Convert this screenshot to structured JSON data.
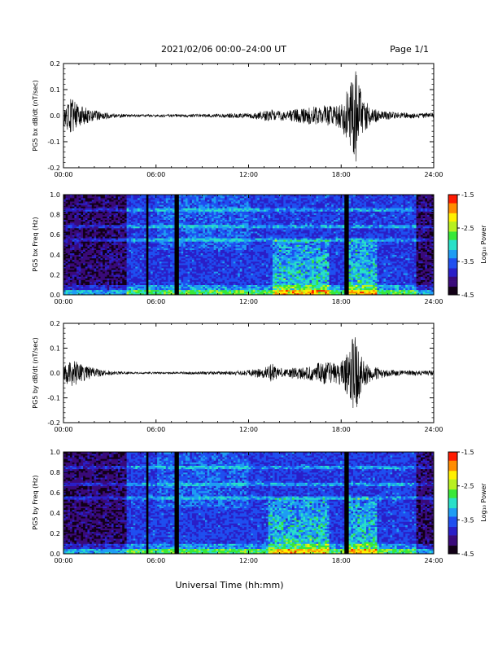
{
  "header": {
    "title": "2021/02/06  00:00–24:00 UT",
    "page": "Page 1/1"
  },
  "x_axis": {
    "ticks": [
      "00:00",
      "06:00",
      "12:00",
      "18:00",
      "24:00"
    ],
    "label": "Universal Time (hh:mm)"
  },
  "colorbar": {
    "label": "Log₁₀ Power",
    "ticks": [
      "-1.5",
      "-2.5",
      "-3.5",
      "-4.5"
    ],
    "range": [
      -4.5,
      -1.5
    ],
    "colors": [
      "#120016",
      "#3a0a7a",
      "#2a1fc8",
      "#1f4ff0",
      "#1e9df4",
      "#28e0c8",
      "#38e838",
      "#b8f020",
      "#fff000",
      "#ff8c00",
      "#ff1a00"
    ]
  },
  "chart_data": [
    {
      "type": "line",
      "title": "",
      "ylabel": "PG5 bx dB/dt (nT/sec)",
      "xlabel": "",
      "xlim_hours": [
        0,
        24
      ],
      "ylim": [
        -0.2,
        0.2
      ],
      "yticks": [
        "-0.2",
        "-0.1",
        "0.0",
        "0.1",
        "0.2"
      ],
      "series": [
        {
          "x_hours": [
            0,
            0.5,
            1,
            1.5,
            2,
            2.5,
            3,
            3.5,
            4,
            4.5,
            5,
            6,
            7,
            8,
            9,
            10,
            11,
            12,
            12.5,
            13,
            13.5,
            14,
            14.5,
            15,
            15.5,
            16,
            16.5,
            17,
            17.5,
            18,
            18.3,
            18.6,
            18.9,
            19.1,
            19.4,
            20,
            21,
            22,
            23,
            24
          ],
          "envelope": [
            0.04,
            0.07,
            0.04,
            0.03,
            0.02,
            0.015,
            0.01,
            0.008,
            0.006,
            0.005,
            0.005,
            0.005,
            0.005,
            0.006,
            0.006,
            0.007,
            0.008,
            0.01,
            0.015,
            0.02,
            0.025,
            0.018,
            0.02,
            0.025,
            0.03,
            0.035,
            0.035,
            0.04,
            0.04,
            0.05,
            0.09,
            0.12,
            0.2,
            0.14,
            0.07,
            0.03,
            0.015,
            0.012,
            0.01,
            0.01
          ]
        }
      ]
    },
    {
      "type": "heatmap",
      "title": "",
      "ylabel": "PG5 bx Freq (Hz)",
      "xlabel": "",
      "xlim_hours": [
        0,
        24
      ],
      "ylim": [
        0,
        1.0
      ],
      "yticks": [
        "0.0",
        "0.2",
        "0.4",
        "0.6",
        "0.8",
        "1.0"
      ],
      "data_gap_hours": [
        [
          5.3,
          5.5
        ],
        [
          7.25,
          7.5
        ],
        [
          18.2,
          18.45
        ]
      ],
      "quiet_interval_hours": [
        [
          0,
          4.1
        ],
        [
          22.9,
          24
        ]
      ],
      "enhanced_interval_hours": [
        [
          13.5,
          17.2
        ],
        [
          18.5,
          20.3
        ]
      ]
    },
    {
      "type": "line",
      "title": "",
      "ylabel": "PG5 by dB/dt (nT/sec)",
      "xlabel": "",
      "xlim_hours": [
        0,
        24
      ],
      "ylim": [
        -0.2,
        0.2
      ],
      "yticks": [
        "-0.2",
        "-0.1",
        "0.0",
        "0.1",
        "0.2"
      ],
      "series": [
        {
          "x_hours": [
            0,
            0.5,
            1,
            1.5,
            2,
            2.5,
            3,
            3.5,
            4,
            4.5,
            5,
            6,
            7,
            8,
            9,
            10,
            11,
            12,
            12.5,
            13,
            13.5,
            14,
            14.5,
            15,
            15.5,
            16,
            16.5,
            17,
            17.5,
            18,
            18.3,
            18.6,
            18.9,
            19.1,
            19.4,
            20,
            21,
            22,
            23,
            24
          ],
          "envelope": [
            0.03,
            0.06,
            0.04,
            0.03,
            0.02,
            0.012,
            0.008,
            0.006,
            0.005,
            0.004,
            0.004,
            0.004,
            0.004,
            0.005,
            0.006,
            0.006,
            0.008,
            0.012,
            0.018,
            0.02,
            0.04,
            0.02,
            0.02,
            0.025,
            0.025,
            0.035,
            0.04,
            0.05,
            0.04,
            0.05,
            0.09,
            0.12,
            0.16,
            0.12,
            0.06,
            0.03,
            0.015,
            0.01,
            0.01,
            0.01
          ]
        }
      ]
    },
    {
      "type": "heatmap",
      "title": "",
      "ylabel": "PG5 by Freq (Hz)",
      "xlabel": "",
      "xlim_hours": [
        0,
        24
      ],
      "ylim": [
        0,
        1.0
      ],
      "yticks": [
        "0.0",
        "0.2",
        "0.4",
        "0.6",
        "0.8",
        "1.0"
      ],
      "data_gap_hours": [
        [
          5.3,
          5.5
        ],
        [
          7.25,
          7.5
        ],
        [
          18.2,
          18.45
        ]
      ],
      "quiet_interval_hours": [
        [
          0,
          4.1
        ],
        [
          22.9,
          24
        ]
      ],
      "enhanced_interval_hours": [
        [
          13.3,
          17.2
        ],
        [
          18.5,
          20.3
        ]
      ]
    }
  ]
}
